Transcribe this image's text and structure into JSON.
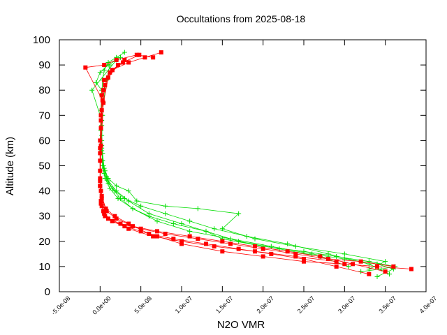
{
  "chart_data": {
    "type": "line",
    "title": "Occultations from 2025-08-18",
    "xlabel": "N2O VMR",
    "ylabel": "Altitude (km)",
    "xlim": [
      -5e-08,
      4e-07
    ],
    "ylim": [
      0,
      100
    ],
    "x_ticks": [
      "-5.0e-08",
      "0.0e+00",
      "5.0e-08",
      "1.0e-07",
      "1.5e-07",
      "2.0e-07",
      "2.5e-07",
      "3.0e-07",
      "3.5e-07",
      "4.0e-07"
    ],
    "x_tick_values": [
      -5e-08,
      0,
      5e-08,
      1e-07,
      1.5e-07,
      2e-07,
      2.5e-07,
      3e-07,
      3.5e-07,
      4e-07
    ],
    "y_ticks": [
      "0",
      "10",
      "20",
      "30",
      "40",
      "50",
      "60",
      "70",
      "80",
      "90",
      "100"
    ],
    "y_tick_values": [
      0,
      10,
      20,
      30,
      40,
      50,
      60,
      70,
      80,
      90,
      100
    ],
    "grid": false,
    "legend": "none",
    "series": [
      {
        "color": "#00dd00",
        "marker": "plus",
        "profiles": [
          {
            "x": [
              3.2e-07,
              3.45e-07,
              3.62e-07,
              3.3e-07,
              2.9e-07,
              2.5e-07,
              2e-07,
              1.5e-07,
              1.3e-07,
              1e-07,
              6e-08,
              3.5e-08,
              2e-08,
              1e-08,
              6e-09,
              3e-09,
              2e-09,
              2e-09,
              2e-09,
              3e-09,
              5e-09,
              1e-08,
              2e-08,
              3e-08
            ],
            "y": [
              8,
              9,
              10,
              12,
              14,
              16,
              18,
              21,
              24,
              27,
              31,
              36,
              40,
              44,
              48,
              52,
              60,
              70,
              78,
              84,
              88,
              91,
              93,
              95
            ]
          },
          {
            "x": [
              3.4e-07,
              3.6e-07,
              3.4e-07,
              3e-07,
              2.6e-07,
              2.1e-07,
              1.6e-07,
              1.1e-07,
              7e-08,
              4e-08,
              2.5e-08,
              1.5e-08,
              8e-09,
              4e-09,
              2e-09,
              1e-09,
              1e-09,
              2e-09,
              -5e-09,
              0,
              1e-08,
              2.5e-08
            ],
            "y": [
              6,
              9,
              11,
              13,
              15,
              18,
              21,
              24,
              28,
              33,
              37,
              41,
              45,
              50,
              56,
              64,
              72,
              80,
              83,
              87,
              90,
              93
            ]
          },
          {
            "x": [
              3.55e-07,
              3.3e-07,
              2.8e-07,
              2.3e-07,
              1.8e-07,
              1.4e-07,
              1.1e-07,
              8e-08,
              5e-08,
              3e-08,
              1.8e-08,
              1e-08,
              5e-09,
              3e-09,
              2e-09,
              2e-09,
              4e-09,
              8e-09,
              1.2e-08
            ],
            "y": [
              7,
              11,
              15,
              19,
              22,
              25,
              28,
              31,
              34,
              37,
              40,
              43,
              47,
              52,
              58,
              66,
              75,
              84,
              90
            ]
          },
          {
            "x": [
              3.3e-07,
              3.5e-07,
              3e-07,
              2.4e-07,
              1.9e-07,
              1.5e-07,
              1.7e-07,
              1.2e-07,
              8e-08,
              4.5e-08,
              3.5e-08,
              2e-08,
              1e-08,
              5e-09,
              3e-09,
              2e-09,
              3e-09
            ],
            "y": [
              9,
              12,
              15,
              18,
              21,
              25,
              31,
              33,
              34,
              36,
              40,
              42,
              45,
              49,
              55,
              62,
              70
            ]
          },
          {
            "x": [
              3.05e-07,
              2.7e-07,
              2.2e-07,
              1.7e-07,
              1.3e-07,
              9e-08,
              6e-08,
              4e-08,
              2.2e-08,
              1.2e-08,
              6e-09,
              3e-09,
              2e-09,
              2e-09,
              -1e-08,
              2e-08
            ],
            "y": [
              10,
              14,
              17,
              20,
              24,
              27,
              30,
              33,
              37,
              41,
              45,
              50,
              57,
              68,
              80,
              92
            ]
          }
        ]
      },
      {
        "color": "#ff0000",
        "marker": "square",
        "profiles": [
          {
            "x": [
              3.82e-07,
              3.4e-07,
              3e-07,
              2.5e-07,
              2e-07,
              1.5e-07,
              1e-07,
              7e-08,
              5e-08,
              3e-08,
              1.5e-08,
              6e-09,
              2e-09,
              1e-09,
              0,
              0,
              1e-09,
              2e-09,
              5e-09,
              1.5e-08,
              3.5e-08,
              5.5e-08,
              7.5e-08
            ],
            "y": [
              9,
              10,
              11,
              12,
              14,
              16,
              19,
              22,
              24,
              26,
              28,
              30,
              34,
              40,
              48,
              60,
              70,
              78,
              84,
              88,
              91,
              93,
              95
            ]
          },
          {
            "x": [
              3.6e-07,
              3.2e-07,
              2.8e-07,
              2.4e-07,
              2e-07,
              1.6e-07,
              1.2e-07,
              8e-08,
              5e-08,
              2.5e-08,
              1e-08,
              4e-09,
              1e-09,
              0,
              0,
              1e-09,
              3e-09,
              -1.8e-08,
              5e-09,
              2e-08,
              4.5e-08,
              6.5e-08
            ],
            "y": [
              10,
              12,
              13,
              15,
              17,
              19,
              21,
              23,
              25,
              27,
              29,
              32,
              36,
              42,
              52,
              65,
              76,
              89,
              90,
              92,
              94,
              93
            ]
          },
          {
            "x": [
              3.5e-07,
              3.1e-07,
              2.7e-07,
              2.3e-07,
              1.9e-07,
              1.5e-07,
              1.1e-07,
              7e-08,
              4e-08,
              2e-08,
              8e-09,
              2e-09,
              0,
              0,
              1e-09,
              4e-09,
              1.2e-08,
              2.8e-08,
              4.8e-08
            ],
            "y": [
              8,
              11,
              14,
              16,
              18,
              20,
              22,
              24,
              26,
              29,
              32,
              37,
              44,
              55,
              68,
              80,
              87,
              91,
              94
            ]
          },
          {
            "x": [
              3.3e-07,
              2.9e-07,
              2.5e-07,
              2.1e-07,
              1.7e-07,
              1.3e-07,
              9e-08,
              6e-08,
              3.5e-08,
              1.8e-08,
              7e-09,
              2e-09,
              0,
              0,
              2e-09,
              6e-09,
              1.5e-08,
              3e-08
            ],
            "y": [
              7,
              10,
              13,
              15,
              17,
              19,
              21,
              23,
              27,
              30,
              33,
              38,
              45,
              57,
              72,
              82,
              88,
              92
            ]
          },
          {
            "x": [
              2.9e-07,
              2.4e-07,
              1.9e-07,
              1.4e-07,
              1e-07,
              6.5e-08,
              3.5e-08,
              1.5e-08,
              5e-09,
              1e-09,
              0,
              1e-09,
              4e-09,
              1e-08,
              2.2e-08
            ],
            "y": [
              12,
              14,
              16,
              18,
              20,
              22,
              25,
              28,
              31,
              35,
              42,
              58,
              75,
              85,
              90
            ]
          }
        ]
      }
    ]
  }
}
